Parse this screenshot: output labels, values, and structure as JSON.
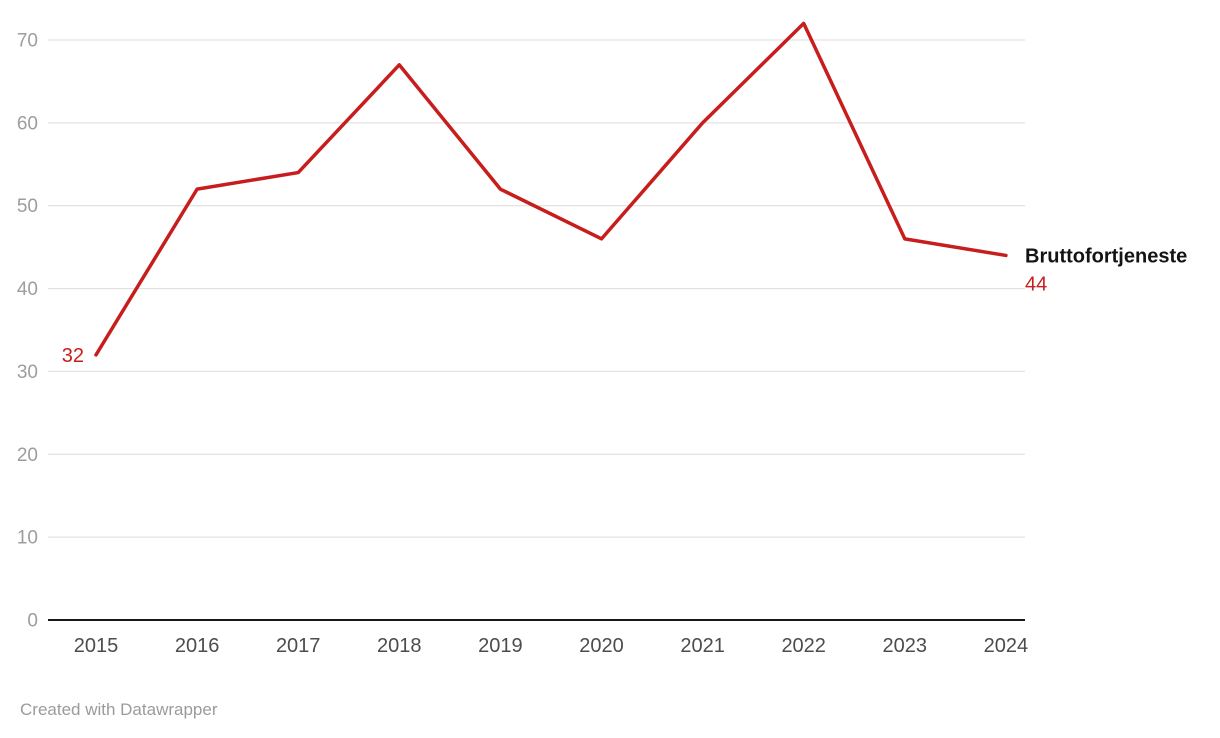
{
  "chart_data": {
    "type": "line",
    "x": [
      "2015",
      "2016",
      "2017",
      "2018",
      "2019",
      "2020",
      "2021",
      "2022",
      "2023",
      "2024"
    ],
    "series": [
      {
        "name": "Bruttofortjeneste",
        "values": [
          32,
          52,
          54,
          67,
          52,
          46,
          60,
          72,
          46,
          44
        ],
        "color": "#c71e1d"
      }
    ],
    "ylim": [
      0,
      70
    ],
    "yticks": [
      0,
      10,
      20,
      30,
      40,
      50,
      60,
      70
    ],
    "grid": "horizontal",
    "legend_position": "end-of-line",
    "start_label": "32",
    "end_label": "44"
  },
  "footer": {
    "credit": "Created with Datawrapper"
  },
  "colors": {
    "series": "#c71e1d",
    "grid": "#dcdcdc",
    "axis": "#18181a",
    "y_tick_text": "#9d9d9d",
    "x_tick_text": "#4c4c4c",
    "series_label_text": "#141414",
    "credit_text": "#9b9b9b"
  }
}
